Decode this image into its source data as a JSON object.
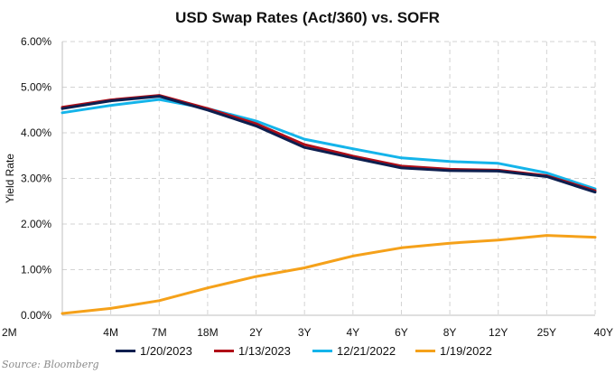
{
  "source": "Source: Bloomberg",
  "chart_data": {
    "type": "line",
    "title": "USD Swap Rates (Act/360) vs. SOFR",
    "xlabel": "",
    "ylabel": "Yield Rate",
    "ylim": [
      0,
      6
    ],
    "yticks": [
      "0.00%",
      "1.00%",
      "2.00%",
      "3.00%",
      "4.00%",
      "5.00%",
      "6.00%"
    ],
    "categories": [
      "2M",
      "4M",
      "7M",
      "18M",
      "2Y",
      "3Y",
      "4Y",
      "6Y",
      "8Y",
      "12Y",
      "25Y",
      "40Y"
    ],
    "grid": true,
    "legend_position": "bottom",
    "series": [
      {
        "name": "1/20/2023",
        "color": "#0d1f4f",
        "values": [
          4.53,
          4.7,
          4.8,
          4.5,
          4.15,
          3.68,
          3.45,
          3.23,
          3.17,
          3.16,
          3.04,
          2.7
        ]
      },
      {
        "name": "1/13/2023",
        "color": "#b00d17",
        "values": [
          4.56,
          4.72,
          4.82,
          4.53,
          4.2,
          3.74,
          3.49,
          3.27,
          3.2,
          3.18,
          3.06,
          2.73
        ]
      },
      {
        "name": "12/21/2022",
        "color": "#14b4ea",
        "values": [
          4.44,
          4.6,
          4.73,
          4.53,
          4.26,
          3.86,
          3.65,
          3.45,
          3.37,
          3.33,
          3.12,
          2.77
        ]
      },
      {
        "name": "1/19/2022",
        "color": "#f5a11a",
        "values": [
          0.04,
          0.15,
          0.32,
          0.6,
          0.85,
          1.04,
          1.3,
          1.48,
          1.58,
          1.65,
          1.75,
          1.71
        ]
      }
    ]
  }
}
